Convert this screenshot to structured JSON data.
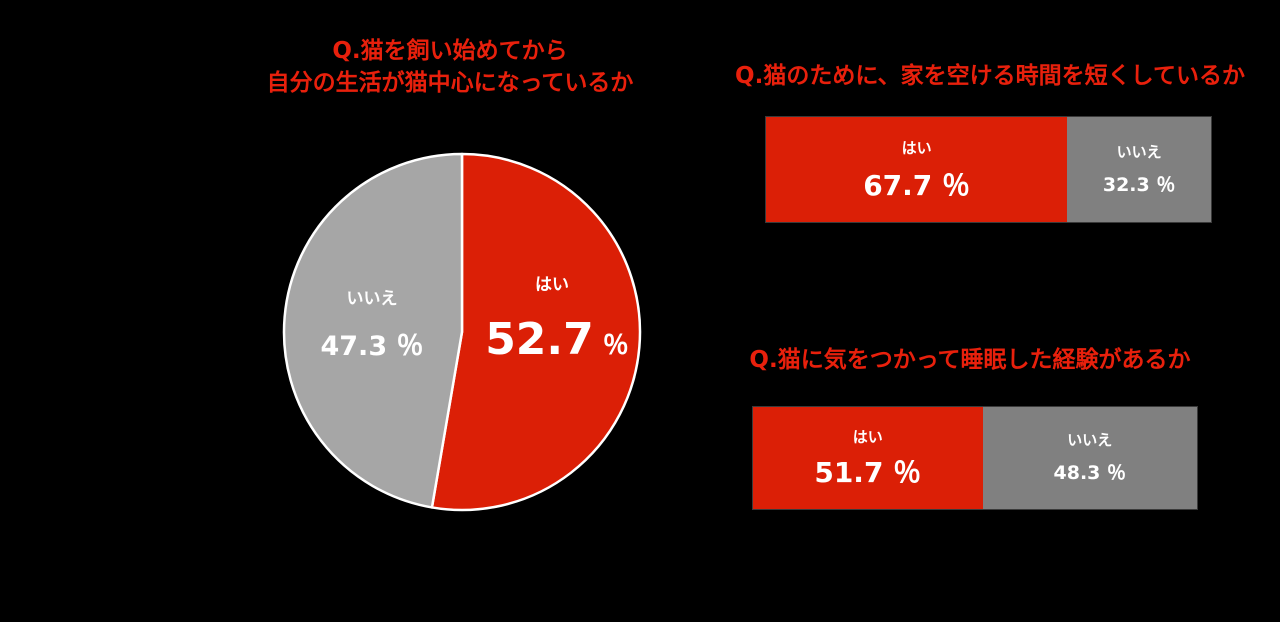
{
  "colors": {
    "accent": "#e8200c",
    "yes_fill": "#db1f06",
    "no_fill_pie": "#a6a6a6",
    "no_fill_bar": "#808080",
    "background": "#000000",
    "text": "#ffffff"
  },
  "chart_data": [
    {
      "type": "pie",
      "title_lines": [
        "Q.猫を飼い始めてから",
        "自分の生活が猫中心になっているか"
      ],
      "slices": [
        {
          "label": "はい",
          "value": 52.7,
          "display": "52.7 ％"
        },
        {
          "label": "いいえ",
          "value": 47.3,
          "display": "47.3 ％"
        }
      ]
    },
    {
      "type": "bar",
      "orientation": "horizontal-stacked-100",
      "title": "Q.猫のために、家を空ける時間を短くしているか",
      "segments": [
        {
          "label": "はい",
          "value": 67.7,
          "display": "67.7 ％"
        },
        {
          "label": "いいえ",
          "value": 32.3,
          "display": "32.3 ％"
        }
      ]
    },
    {
      "type": "bar",
      "orientation": "horizontal-stacked-100",
      "title": "Q.猫に気をつかって睡眠した経験があるか",
      "segments": [
        {
          "label": "はい",
          "value": 51.7,
          "display": "51.7 ％"
        },
        {
          "label": "いいえ",
          "value": 48.3,
          "display": "48.3 ％"
        }
      ]
    }
  ]
}
